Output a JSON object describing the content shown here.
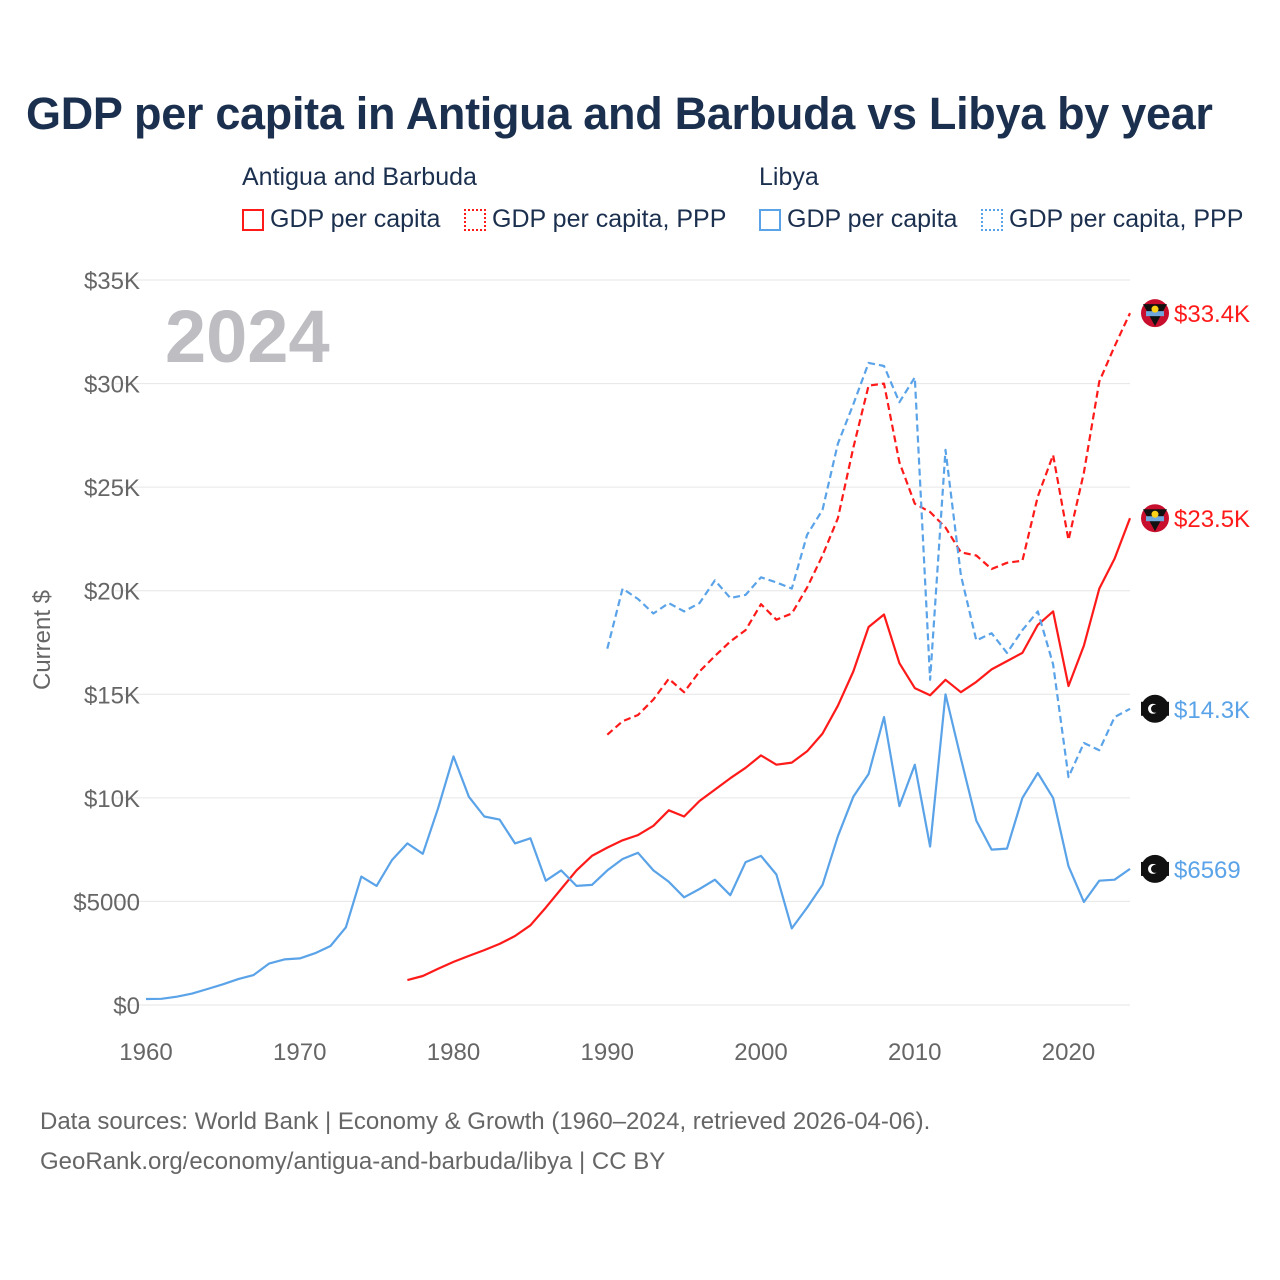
{
  "title": "GDP per capita in Antigua and Barbuda vs Libya by year",
  "legend": {
    "groups": [
      {
        "country": "Antigua and Barbuda",
        "items": [
          "GDP per capita",
          "GDP per capita, PPP"
        ],
        "color": "#ff1a1a"
      },
      {
        "country": "Libya",
        "items": [
          "GDP per capita",
          "GDP per capita, PPP"
        ],
        "color": "#5aa3e8"
      }
    ]
  },
  "year_watermark": "2024",
  "footer": {
    "line1": "Data sources: World Bank | Economy & Growth (1960–2024, retrieved 2026-04-06).",
    "line2": "GeoRank.org/economy/antigua-and-barbuda/libya | CC BY"
  },
  "chart_data": {
    "type": "line",
    "title": "GDP per capita in Antigua and Barbuda vs Libya by year",
    "xlabel": "",
    "ylabel": "Current $",
    "xlim": [
      1960,
      2024
    ],
    "ylim": [
      0,
      35000
    ],
    "x_ticks": [
      "1960",
      "1970",
      "1980",
      "1990",
      "2000",
      "2010",
      "2020"
    ],
    "y_ticks": [
      "$0",
      "$5000",
      "$10K",
      "$15K",
      "$20K",
      "$25K",
      "$30K",
      "$35K"
    ],
    "grid": true,
    "legend_position": "top",
    "series": [
      {
        "name": "Antigua and Barbuda GDP per capita",
        "color": "#ff1a1a",
        "dash": false,
        "end_label": "$23.5K",
        "start": 1977,
        "values": [
          1.2,
          1.4,
          1.75,
          2.08,
          2.37,
          2.65,
          2.95,
          3.33,
          3.85,
          4.7,
          5.6,
          6.5,
          7.2,
          7.6,
          7.95,
          8.2,
          8.65,
          9.4,
          9.1,
          9.85,
          10.4,
          10.95,
          11.45,
          12.05,
          11.6,
          11.7,
          12.25,
          13.1,
          14.45,
          16.1,
          18.25,
          18.85,
          16.5,
          15.3,
          14.95,
          15.7,
          15.1,
          15.6,
          16.2,
          16.6,
          17.0,
          18.35,
          19.0,
          15.4,
          17.35,
          20.1,
          21.55,
          23.5
        ]
      },
      {
        "name": "Antigua and Barbuda GDP per capita, PPP",
        "color": "#ff1a1a",
        "dash": true,
        "end_label": "$33.4K",
        "start": 1990,
        "values": [
          13.05,
          13.7,
          14.0,
          14.75,
          15.75,
          15.1,
          16.1,
          16.85,
          17.55,
          18.1,
          19.35,
          18.6,
          18.9,
          20.15,
          21.7,
          23.5,
          26.9,
          29.9,
          30.0,
          26.2,
          24.2,
          23.8,
          23.05,
          21.85,
          21.7,
          21.05,
          21.35,
          21.45,
          24.55,
          26.55,
          22.45,
          25.7,
          30.1,
          31.8,
          33.4
        ]
      },
      {
        "name": "Libya GDP per capita",
        "color": "#5aa3e8",
        "dash": false,
        "end_label": "$6569",
        "start": 1960,
        "values": [
          0.29,
          0.3,
          0.4,
          0.55,
          0.77,
          1.0,
          1.25,
          1.45,
          2.0,
          2.2,
          2.25,
          2.5,
          2.85,
          3.75,
          6.2,
          5.75,
          7.0,
          7.8,
          7.3,
          9.5,
          12.0,
          10.05,
          9.1,
          8.95,
          7.8,
          8.05,
          6.0,
          6.5,
          5.75,
          5.8,
          6.5,
          7.05,
          7.35,
          6.5,
          5.95,
          5.2,
          5.6,
          6.05,
          5.3,
          6.9,
          7.2,
          6.3,
          3.7,
          4.7,
          5.8,
          8.15,
          10.05,
          11.15,
          13.9,
          9.6,
          11.6,
          7.65,
          15.0,
          11.9,
          8.9,
          7.5,
          7.55,
          10.0,
          11.2,
          10.0,
          6.7,
          4.97,
          6.0,
          6.05,
          6.569
        ]
      },
      {
        "name": "Libya GDP per capita, PPP",
        "color": "#5aa3e8",
        "dash": true,
        "end_label": "$14.3K",
        "start": 1990,
        "values": [
          17.2,
          20.1,
          19.6,
          18.9,
          19.4,
          19.0,
          19.4,
          20.5,
          19.65,
          19.8,
          20.65,
          20.4,
          20.1,
          22.7,
          23.9,
          27.1,
          29.0,
          31.0,
          30.85,
          29.1,
          30.3,
          15.7,
          26.8,
          20.75,
          17.6,
          17.95,
          17.0,
          18.1,
          19.0,
          16.45,
          11.0,
          12.65,
          12.3,
          13.9,
          14.3
        ]
      }
    ],
    "value_unit": "thousand US$"
  }
}
